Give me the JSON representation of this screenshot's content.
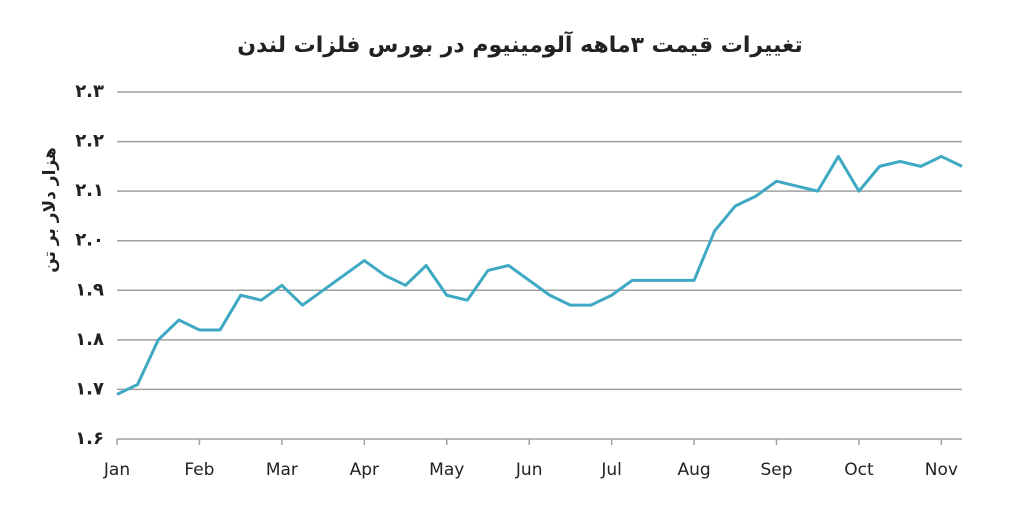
{
  "chart_data": {
    "type": "line",
    "title": "تغییرات قیمت ۳ماهه آلومینیوم در بورس فلزات لندن",
    "y_label": "هزار دلار بر تن",
    "categories": [
      "Jan",
      null,
      null,
      null,
      "Feb",
      null,
      null,
      null,
      "Mar",
      null,
      null,
      null,
      "Apr",
      null,
      null,
      null,
      "May",
      null,
      null,
      null,
      "Jun",
      null,
      null,
      null,
      "Jul",
      null,
      null,
      null,
      "Aug",
      null,
      null,
      null,
      "Sep",
      null,
      null,
      null,
      "Oct",
      null,
      null,
      null,
      "Nov",
      null
    ],
    "series": [
      {
        "color": "#3fa9c4",
        "values": [
          1.69,
          1.71,
          1.8,
          1.84,
          1.82,
          1.82,
          1.89,
          1.88,
          1.91,
          1.87,
          1.9,
          1.93,
          1.96,
          1.93,
          1.91,
          1.95,
          1.89,
          1.88,
          1.94,
          1.95,
          1.92,
          1.89,
          1.87,
          1.87,
          1.89,
          1.92,
          1.92,
          1.92,
          1.92,
          2.02,
          2.07,
          2.09,
          2.12,
          2.11,
          2.1,
          2.17,
          2.1,
          2.15,
          2.16,
          2.15,
          2.17,
          2.15
        ]
      }
    ],
    "ylim": [
      1.6,
      2.3
    ],
    "yticks": [
      {
        "value": 1.6,
        "label": "۱.۶"
      },
      {
        "value": 1.7,
        "label": "۱.۷"
      },
      {
        "value": 1.8,
        "label": "۱.۸"
      },
      {
        "value": 1.9,
        "label": "۱.۹"
      },
      {
        "value": 2.0,
        "label": "۲.۰"
      },
      {
        "value": 2.1,
        "label": "۲.۱"
      },
      {
        "value": 2.2,
        "label": "۲.۲"
      },
      {
        "value": 2.3,
        "label": "۲.۳"
      }
    ],
    "grid": true
  }
}
